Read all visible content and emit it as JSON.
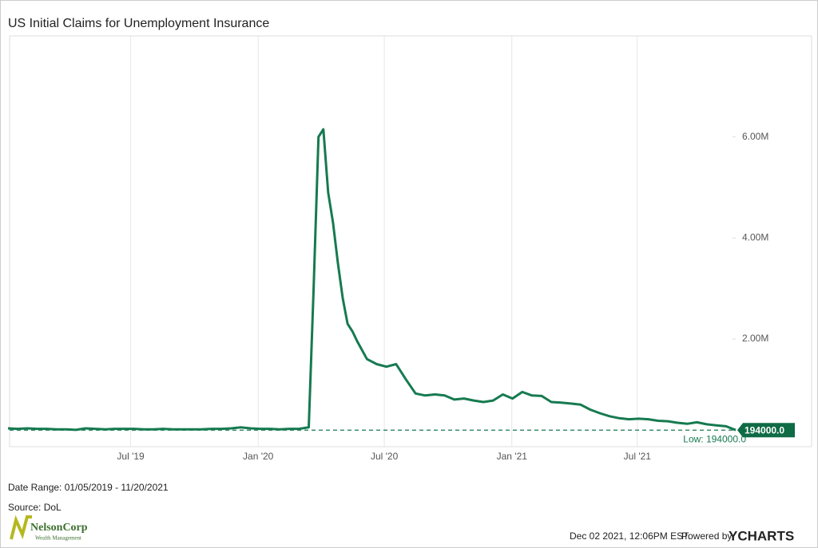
{
  "chart_data": {
    "type": "line",
    "title": "US Initial Claims for Unemployment Insurance",
    "x": [
      "2019-01-05",
      "2019-01-19",
      "2019-02-02",
      "2019-02-16",
      "2019-03-02",
      "2019-03-16",
      "2019-03-30",
      "2019-04-13",
      "2019-04-27",
      "2019-05-11",
      "2019-05-25",
      "2019-06-08",
      "2019-06-22",
      "2019-07-06",
      "2019-07-20",
      "2019-08-03",
      "2019-08-17",
      "2019-08-31",
      "2019-09-14",
      "2019-09-28",
      "2019-10-12",
      "2019-10-26",
      "2019-11-09",
      "2019-11-23",
      "2019-12-07",
      "2019-12-21",
      "2020-01-04",
      "2020-01-18",
      "2020-02-01",
      "2020-02-15",
      "2020-02-29",
      "2020-03-14",
      "2020-03-21",
      "2020-03-28",
      "2020-04-04",
      "2020-04-11",
      "2020-04-18",
      "2020-04-25",
      "2020-05-02",
      "2020-05-09",
      "2020-05-16",
      "2020-05-23",
      "2020-06-06",
      "2020-06-20",
      "2020-07-04",
      "2020-07-18",
      "2020-08-01",
      "2020-08-15",
      "2020-08-29",
      "2020-09-12",
      "2020-09-26",
      "2020-10-10",
      "2020-10-24",
      "2020-11-07",
      "2020-11-21",
      "2020-12-05",
      "2020-12-19",
      "2021-01-02",
      "2021-01-16",
      "2021-01-30",
      "2021-02-13",
      "2021-02-27",
      "2021-03-13",
      "2021-03-27",
      "2021-04-10",
      "2021-04-24",
      "2021-05-08",
      "2021-05-22",
      "2021-06-05",
      "2021-06-19",
      "2021-07-03",
      "2021-07-17",
      "2021-07-31",
      "2021-08-14",
      "2021-08-28",
      "2021-09-11",
      "2021-09-25",
      "2021-10-09",
      "2021-10-23",
      "2021-11-06",
      "2021-11-20"
    ],
    "series": [
      {
        "name": "US Initial Claims for Unemployment Insurance",
        "color": "#167a50",
        "values": [
          230000,
          220000,
          230000,
          220000,
          220000,
          210000,
          210000,
          200000,
          230000,
          220000,
          210000,
          220000,
          220000,
          220000,
          210000,
          210000,
          220000,
          210000,
          210000,
          210000,
          210000,
          220000,
          220000,
          230000,
          250000,
          230000,
          220000,
          220000,
          210000,
          220000,
          220000,
          250000,
          3000000,
          6000000,
          6150000,
          4900000,
          4300000,
          3500000,
          2800000,
          2300000,
          2150000,
          1950000,
          1600000,
          1500000,
          1450000,
          1500000,
          1200000,
          920000,
          880000,
          900000,
          880000,
          800000,
          820000,
          780000,
          750000,
          780000,
          900000,
          820000,
          950000,
          880000,
          870000,
          750000,
          740000,
          720000,
          700000,
          600000,
          530000,
          470000,
          430000,
          410000,
          420000,
          410000,
          380000,
          370000,
          340000,
          320000,
          350000,
          310000,
          290000,
          270000,
          194000
        ]
      }
    ],
    "xlim": [
      "2019-01-05",
      "2021-11-20"
    ],
    "xticks": [
      {
        "value": "2019-07-01",
        "label": "Jul '19"
      },
      {
        "value": "2020-01-01",
        "label": "Jan '20"
      },
      {
        "value": "2020-07-01",
        "label": "Jul '20"
      },
      {
        "value": "2021-01-01",
        "label": "Jan '21"
      },
      {
        "value": "2021-07-01",
        "label": "Jul '21"
      }
    ],
    "ylim": [
      -134000,
      8000000
    ],
    "yticks": [
      {
        "value": 2000000,
        "label": "2.00M"
      },
      {
        "value": 4000000,
        "label": "4.00M"
      },
      {
        "value": 6000000,
        "label": "6.00M"
      }
    ],
    "low": {
      "value": 194000,
      "label": "Low: 194000.0"
    },
    "end_label": {
      "value": 194000,
      "label": "194000.0"
    }
  },
  "footer": {
    "date_range": "Date Range: 01/05/2019 - 11/20/2021",
    "source": "Source: DoL",
    "logo_name": "NelsonCorp",
    "logo_sub": "Wealth Management",
    "timestamp": "Dec 02 2021, 12:06PM EST.",
    "powered_by": "Powered by",
    "brand": "YCHARTS"
  }
}
